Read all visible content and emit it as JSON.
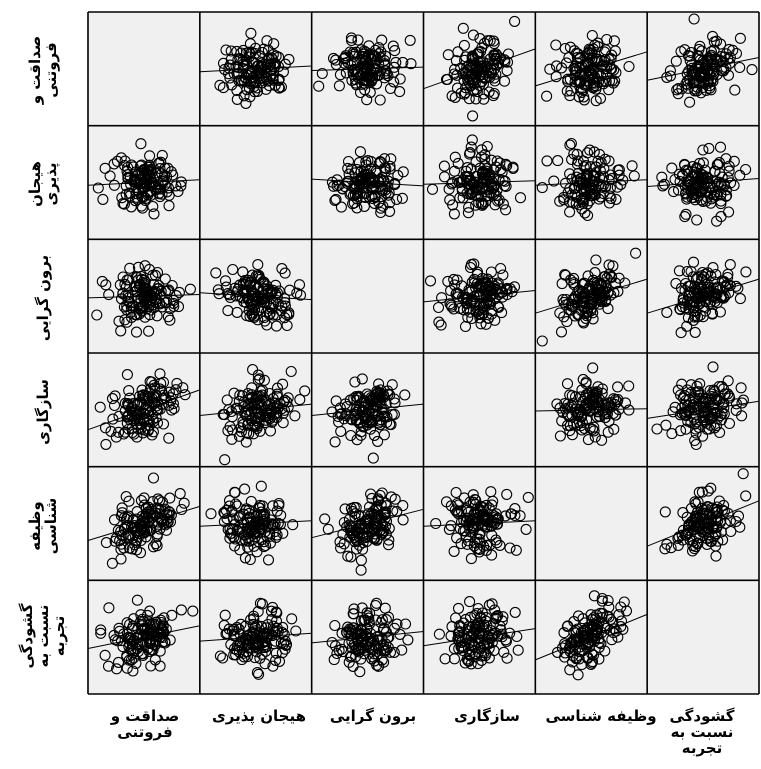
{
  "chart_data": {
    "type": "scatter",
    "title": "",
    "variables": [
      "صداقت و\nفروتنی",
      "هیجان پذیری",
      "برون گرایی",
      "سازگاری",
      "وظیفه شناسی",
      "گشودگی\nنسبت به\nتجربه"
    ],
    "row_labels": [
      "صداقت و\nفروتنی",
      "هیجان\nپذیری",
      "برون گرایی",
      "سازگاری",
      "وظیفه شناسی",
      "گشودگی\nنسبت به\nتجربه"
    ],
    "column_labels": [
      "صداقت و\nفروتنی",
      "هیجان پذیری",
      "برون گرایی",
      "سازگاری",
      "وظیفه شناسی",
      "گشودگی\nنسبت به\nتجربه"
    ],
    "diagonal": "empty",
    "marker": "open-circle",
    "fit_line": true,
    "background": "#f0f0f0",
    "point_color": "#000000",
    "cells": [
      [
        null,
        {
          "slope": 0.05,
          "r": 0.05
        },
        {
          "slope": 0.03,
          "r": 0.03
        },
        {
          "slope": 0.35,
          "r": 0.3
        },
        {
          "slope": 0.3,
          "r": 0.28
        },
        {
          "slope": 0.2,
          "r": 0.2
        }
      ],
      [
        {
          "slope": 0.05,
          "r": 0.05
        },
        null,
        {
          "slope": -0.06,
          "r": -0.06
        },
        {
          "slope": 0.03,
          "r": 0.03
        },
        {
          "slope": 0.05,
          "r": 0.05
        },
        {
          "slope": 0.07,
          "r": 0.07
        }
      ],
      [
        {
          "slope": 0.03,
          "r": 0.03
        },
        {
          "slope": -0.06,
          "r": -0.06
        },
        null,
        {
          "slope": 0.1,
          "r": 0.1
        },
        {
          "slope": 0.3,
          "r": 0.28
        },
        {
          "slope": 0.3,
          "r": 0.28
        }
      ],
      [
        {
          "slope": 0.35,
          "r": 0.3
        },
        {
          "slope": 0.1,
          "r": 0.1
        },
        {
          "slope": 0.1,
          "r": 0.1
        },
        null,
        {
          "slope": 0.02,
          "r": 0.02
        },
        {
          "slope": 0.15,
          "r": 0.15
        }
      ],
      [
        {
          "slope": 0.3,
          "r": 0.28
        },
        {
          "slope": 0.05,
          "r": 0.05
        },
        {
          "slope": 0.25,
          "r": 0.25
        },
        {
          "slope": 0.05,
          "r": 0.05
        },
        null,
        {
          "slope": 0.4,
          "r": 0.38
        }
      ],
      [
        {
          "slope": 0.2,
          "r": 0.2
        },
        {
          "slope": 0.07,
          "r": 0.07
        },
        {
          "slope": 0.1,
          "r": 0.1
        },
        {
          "slope": 0.15,
          "r": 0.15
        },
        {
          "slope": 0.4,
          "r": 0.38
        },
        null
      ]
    ]
  }
}
